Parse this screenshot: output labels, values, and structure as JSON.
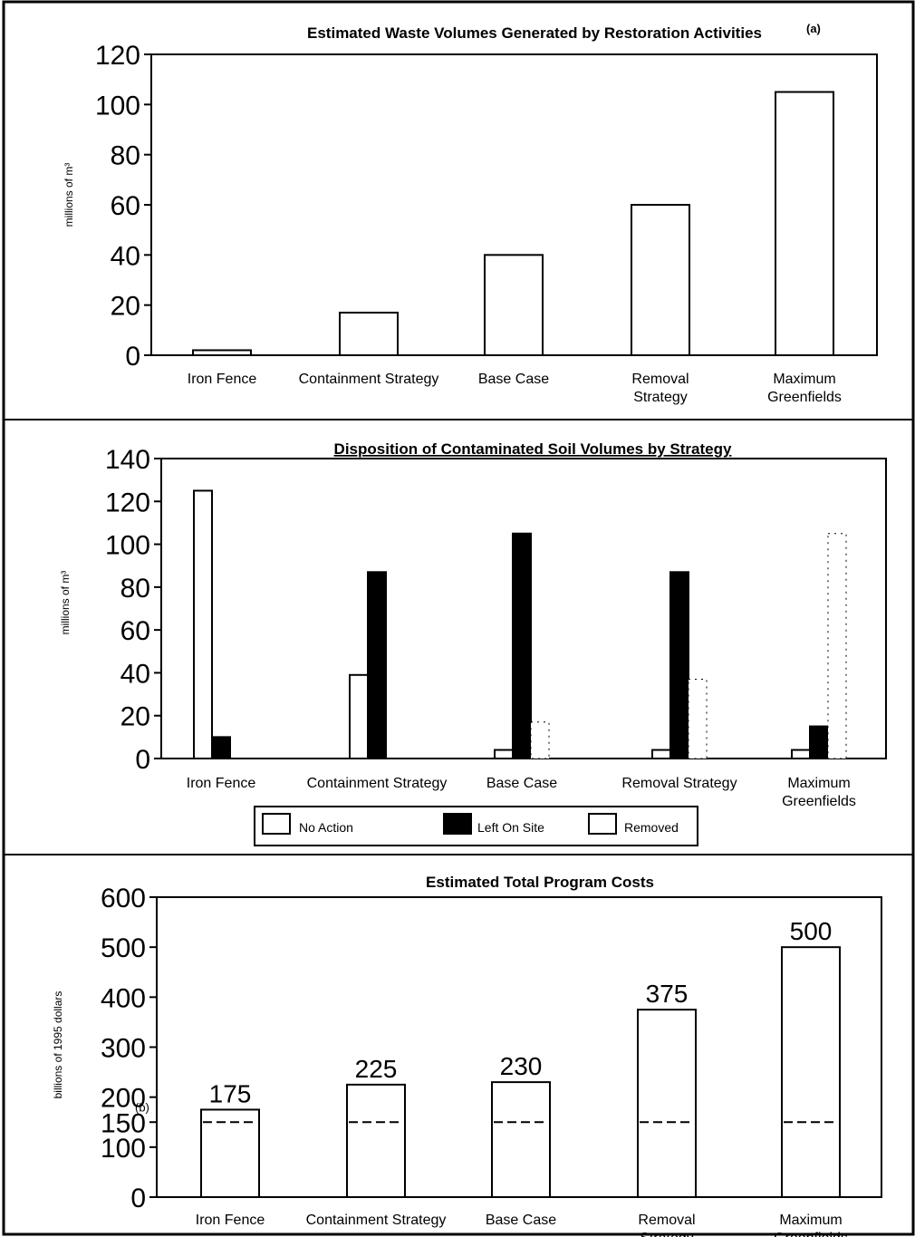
{
  "chart_data": [
    {
      "type": "bar",
      "title": "Estimated Waste Volumes Generated by Restoration Activities",
      "title_note": "(a)",
      "ylabel": "millions of m³",
      "ylim": [
        0,
        120
      ],
      "yticks": [
        0,
        20,
        40,
        60,
        80,
        100,
        120
      ],
      "categories": [
        [
          "Iron Fence"
        ],
        [
          "Containment Strategy"
        ],
        [
          "Base Case"
        ],
        [
          "Removal",
          "Strategy"
        ],
        [
          "Maximum",
          "Greenfields"
        ]
      ],
      "values": [
        2,
        17,
        40,
        60,
        105
      ],
      "colors": {
        "bar_fill": "#ffffff",
        "bar_stroke": "#000000"
      }
    },
    {
      "type": "bar",
      "title": "Disposition of Contaminated Soil Volumes by Strategy",
      "ylabel": "millions of m³",
      "ylim": [
        0,
        140
      ],
      "yticks": [
        0,
        20,
        40,
        60,
        80,
        100,
        120,
        140
      ],
      "categories": [
        [
          "Iron Fence"
        ],
        [
          "Containment Strategy"
        ],
        [
          "Base Case"
        ],
        [
          "Removal Strategy"
        ],
        [
          "Maximum",
          "Greenfields"
        ]
      ],
      "series": [
        {
          "name": "No Action",
          "values": [
            125,
            39,
            4,
            4,
            4
          ],
          "color": "#ffffff"
        },
        {
          "name": "Left On Site",
          "values": [
            10,
            87,
            105,
            87,
            15
          ],
          "color": "#000000"
        },
        {
          "name": "Removed",
          "values": [
            0,
            0,
            17,
            37,
            105
          ],
          "color": "#ffffff"
        }
      ],
      "legend": "bottom-center"
    },
    {
      "type": "bar",
      "title": "Estimated Total Program Costs",
      "ylabel": "billions of 1995 dollars",
      "ylim": [
        0,
        600
      ],
      "yticks": [
        0,
        100,
        150,
        200,
        300,
        400,
        500,
        600
      ],
      "ytick_note": "(b)",
      "categories": [
        [
          "Iron Fence"
        ],
        [
          "Containment Strategy"
        ],
        [
          "Base Case"
        ],
        [
          "Removal",
          "Strategy"
        ],
        [
          "Maximum",
          "Greenfields"
        ]
      ],
      "values": [
        175,
        225,
        230,
        375,
        500
      ],
      "data_labels": [
        "175",
        "225",
        "230",
        "375",
        "500"
      ],
      "reference_line": 150
    }
  ]
}
